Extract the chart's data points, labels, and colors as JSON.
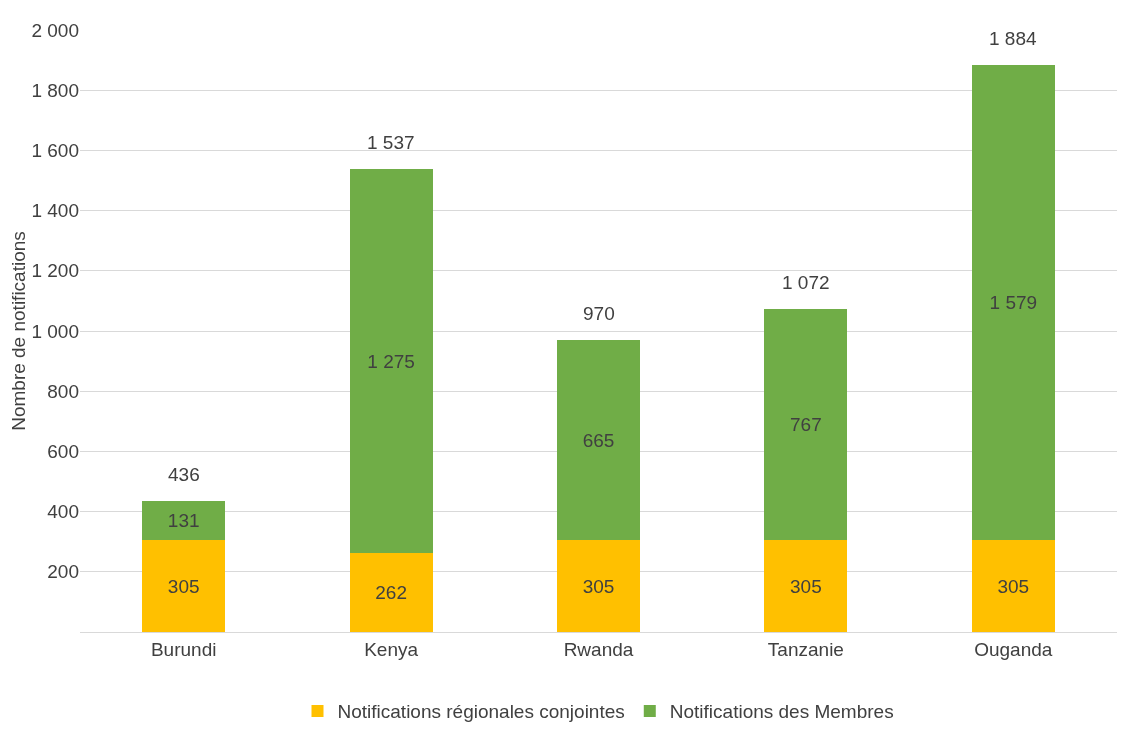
{
  "chart_data": {
    "type": "bar",
    "stacked": true,
    "ylabel": "Nombre de notifications",
    "categories": [
      "Burundi",
      "Kenya",
      "Rwanda",
      "Tanzanie",
      "Ouganda"
    ],
    "series": [
      {
        "name": "Notifications régionales conjointes",
        "color": "#ffc000",
        "values": [
          305,
          262,
          305,
          305,
          305
        ],
        "value_labels": [
          "305",
          "262",
          "305",
          "305",
          "305"
        ]
      },
      {
        "name": "Notifications des Membres",
        "color": "#70ad47",
        "values": [
          131,
          1275,
          665,
          767,
          1579
        ],
        "value_labels": [
          "131",
          "1 275",
          "665",
          "767",
          "1 579"
        ]
      }
    ],
    "totals": [
      "436",
      "1 537",
      "970",
      "1 072",
      "1 884"
    ],
    "ylim": [
      0,
      2000
    ],
    "yticks": [
      {
        "value": 0,
        "label": null
      },
      {
        "value": 200,
        "label": "200"
      },
      {
        "value": 400,
        "label": "400"
      },
      {
        "value": 600,
        "label": "600"
      },
      {
        "value": 800,
        "label": "800"
      },
      {
        "value": 1000,
        "label": "1 000"
      },
      {
        "value": 1200,
        "label": "1 200"
      },
      {
        "value": 1400,
        "label": "1 400"
      },
      {
        "value": 1600,
        "label": "1 600"
      },
      {
        "value": 1800,
        "label": "1 800"
      },
      {
        "value": 2000,
        "label": "2 000"
      }
    ],
    "grid": "y",
    "legend": "bottom"
  }
}
